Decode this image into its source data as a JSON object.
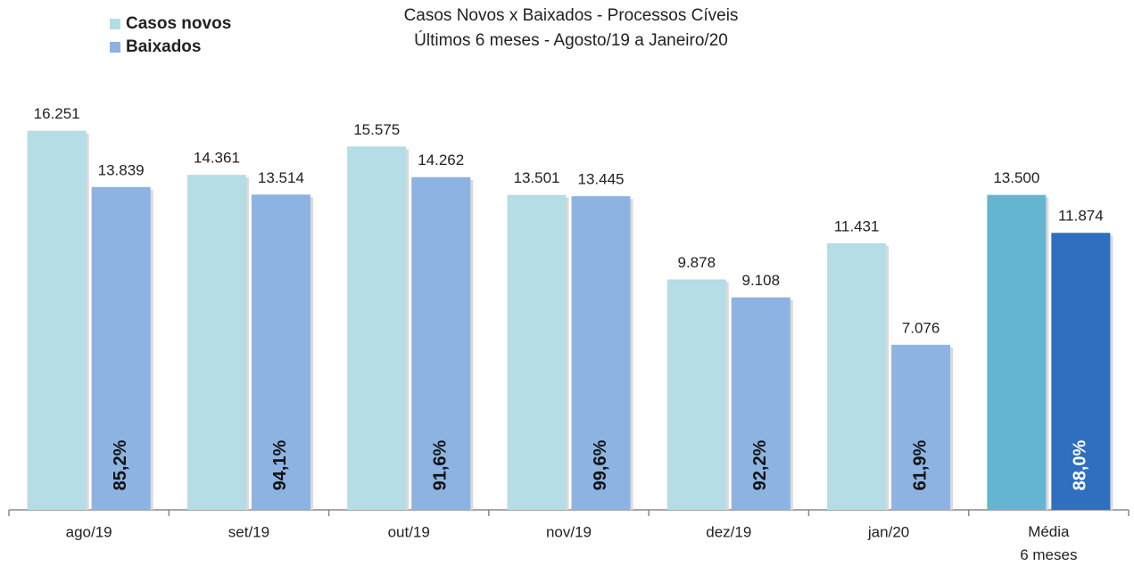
{
  "chart_data": {
    "type": "bar",
    "title": [
      "Casos Novos x Baixados - Processos Cíveis",
      "Últimos 6 meses - Agosto/19 a Janeiro/20"
    ],
    "categories": [
      "ago/19",
      "set/19",
      "out/19",
      "nov/19",
      "dez/19",
      "jan/20",
      "Média\n6 meses"
    ],
    "series": [
      {
        "name": "Casos novos",
        "color": "#b4dde6",
        "colors": [
          "#b4dde6",
          "#b4dde6",
          "#b4dde6",
          "#b4dde6",
          "#b4dde6",
          "#b4dde6",
          "#66b5d0"
        ],
        "values": [
          16251,
          14361,
          15575,
          13501,
          9878,
          11431,
          13500
        ],
        "value_labels": [
          "16.251",
          "14.361",
          "15.575",
          "13.501",
          "9.878",
          "11.431",
          "13.500"
        ]
      },
      {
        "name": "Baixados",
        "color": "#8db3e2",
        "colors": [
          "#8db3e2",
          "#8db3e2",
          "#8db3e2",
          "#8db3e2",
          "#8db3e2",
          "#8db3e2",
          "#2f6fbf"
        ],
        "values": [
          13839,
          13514,
          14262,
          13445,
          9108,
          7076,
          11874
        ],
        "value_labels": [
          "13.839",
          "13.514",
          "14.262",
          "13.445",
          "9.108",
          "7.076",
          "11.874"
        ],
        "rate_labels": [
          "85,2%",
          "94,1%",
          "91,6%",
          "99,6%",
          "92,2%",
          "61,9%",
          "88,0%"
        ]
      }
    ],
    "ylim": [
      0,
      17500
    ],
    "legend": "upper left"
  }
}
